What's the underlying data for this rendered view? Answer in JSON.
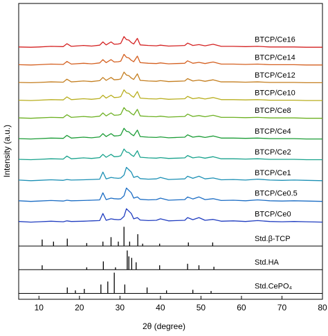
{
  "chart_data": {
    "type": "line",
    "x_label": "2θ (degree)",
    "y_label": "Intensity (a.u.)",
    "xlim": [
      5,
      80
    ],
    "ylim": [
      0,
      100
    ],
    "xticks": [
      10,
      20,
      30,
      40,
      50,
      60,
      70,
      80
    ],
    "x": [
      5,
      8,
      10,
      13,
      16,
      16.9,
      18,
      21,
      23,
      25,
      25.8,
      26.6,
      27.8,
      28.6,
      29.6,
      30.2,
      31,
      31.6,
      32.2,
      32.8,
      33.4,
      34.3,
      35,
      37,
      39,
      40,
      42,
      44,
      46,
      46.7,
      48,
      49.5,
      51,
      53,
      55,
      58,
      61,
      64,
      67,
      70,
      73,
      76,
      80
    ],
    "series": [
      {
        "name": "BTCP/Ce0",
        "color": "#1f3cc0",
        "values": [
          26.3,
          26.1,
          26.2,
          26.4,
          26.2,
          26.5,
          26.3,
          26.4,
          26.5,
          26.6,
          29,
          26.7,
          27.2,
          27,
          26.9,
          27,
          28,
          30.6,
          29.8,
          29,
          27.2,
          27.6,
          26.8,
          26.6,
          26.7,
          27.2,
          26.5,
          26.6,
          26.7,
          27.6,
          26.9,
          27.6,
          26.7,
          27,
          26.4,
          26.5,
          26.3,
          26.6,
          26.3,
          26.2,
          26.3,
          26.2,
          26.1
        ]
      },
      {
        "name": "BTCP/Ce0.5",
        "color": "#1a6cc4",
        "values": [
          33.3,
          33.1,
          33.2,
          33.4,
          33.2,
          33.5,
          33.3,
          33.4,
          33.5,
          33.6,
          36,
          33.7,
          34.2,
          34,
          33.9,
          34,
          35,
          37.6,
          36.8,
          36,
          34.2,
          34.6,
          33.8,
          33.6,
          33.7,
          34.2,
          33.5,
          33.6,
          33.7,
          34.6,
          33.9,
          34.6,
          33.7,
          34,
          33.4,
          33.5,
          33.3,
          33.6,
          33.3,
          33.2,
          33.3,
          33.2,
          33.1
        ]
      },
      {
        "name": "BTCP/Ce1",
        "color": "#1a8fb4",
        "values": [
          40.3,
          40.1,
          40.2,
          40.4,
          40.2,
          40.5,
          40.3,
          40.4,
          40.5,
          40.6,
          43,
          40.7,
          41.2,
          41,
          40.9,
          41,
          42,
          44.6,
          43.8,
          43,
          41.2,
          41.6,
          40.8,
          40.6,
          40.7,
          41.2,
          40.5,
          40.6,
          40.7,
          41.6,
          40.9,
          41.6,
          40.7,
          41,
          40.4,
          40.5,
          40.3,
          40.6,
          40.3,
          40.2,
          40.3,
          40.2,
          40.1
        ]
      },
      {
        "name": "BTCP/Ce2",
        "color": "#17a28c",
        "values": [
          47.3,
          47.2,
          47.3,
          47.5,
          47.4,
          48.4,
          47.5,
          47.8,
          47.6,
          47.9,
          49,
          48,
          49,
          48.2,
          48.3,
          48.5,
          50.8,
          49.8,
          49.6,
          48.8,
          48.3,
          50.2,
          48,
          47.8,
          47.7,
          47.9,
          47.6,
          47.7,
          47.8,
          48.6,
          47.8,
          48.1,
          47.7,
          48.2,
          47.5,
          47.5,
          47.4,
          47.5,
          47.3,
          47.3,
          47.3,
          47.2,
          47.2
        ]
      },
      {
        "name": "BTCP/Ce4",
        "color": "#1b9c36",
        "values": [
          54.3,
          54.2,
          54.3,
          54.5,
          54.4,
          55.4,
          54.5,
          54.8,
          54.6,
          54.9,
          56,
          55,
          56,
          55.2,
          55.3,
          55.5,
          57.8,
          56.8,
          56.6,
          55.8,
          55.3,
          57.2,
          55,
          54.8,
          54.7,
          54.9,
          54.6,
          54.7,
          54.8,
          55.6,
          54.8,
          55.1,
          54.7,
          55.2,
          54.5,
          54.5,
          54.4,
          54.5,
          54.3,
          54.3,
          54.3,
          54.2,
          54.2
        ]
      },
      {
        "name": "BTCP/Ce8",
        "color": "#6cb021",
        "values": [
          61.3,
          61.2,
          61.3,
          61.5,
          61.4,
          62.4,
          61.5,
          61.8,
          61.6,
          61.9,
          63,
          62,
          63,
          62.2,
          62.3,
          62.5,
          64.8,
          63.8,
          63.6,
          62.8,
          62.3,
          64.2,
          62,
          61.8,
          61.7,
          61.9,
          61.6,
          61.7,
          61.8,
          62.6,
          61.8,
          62.1,
          61.7,
          62.2,
          61.5,
          61.5,
          61.4,
          61.5,
          61.3,
          61.3,
          61.3,
          61.2,
          61.2
        ]
      },
      {
        "name": "BTCP/Ce10",
        "color": "#b8ae1e",
        "values": [
          67.3,
          67.2,
          67.3,
          67.5,
          67.4,
          68.4,
          67.5,
          67.8,
          67.6,
          67.9,
          69,
          68,
          69,
          68.2,
          68.3,
          68.5,
          70.8,
          69.8,
          69.6,
          68.8,
          68.3,
          70.2,
          68,
          67.8,
          67.7,
          67.9,
          67.6,
          67.7,
          67.8,
          68.6,
          67.8,
          68.1,
          67.7,
          68.2,
          67.5,
          67.5,
          67.4,
          67.5,
          67.3,
          67.3,
          67.3,
          67.2,
          67.2
        ]
      },
      {
        "name": "BTCP/Ce12",
        "color": "#c47e1f",
        "values": [
          73.3,
          73.2,
          73.3,
          73.5,
          73.4,
          74.4,
          73.5,
          73.8,
          73.6,
          73.9,
          75,
          74,
          75,
          74.2,
          74.3,
          74.5,
          76.8,
          75.8,
          75.6,
          74.8,
          74.3,
          76.2,
          74,
          73.8,
          73.7,
          73.9,
          73.6,
          73.7,
          73.8,
          74.6,
          73.8,
          74.1,
          73.7,
          74.2,
          73.5,
          73.5,
          73.4,
          73.5,
          73.3,
          73.3,
          73.3,
          73.2,
          73.2
        ]
      },
      {
        "name": "BTCP/Ce14",
        "color": "#d45f1f",
        "values": [
          79.3,
          79.2,
          79.3,
          79.5,
          79.4,
          80.4,
          79.5,
          79.8,
          79.6,
          79.9,
          81,
          80,
          81,
          80.2,
          80.3,
          80.5,
          82.8,
          81.8,
          81.6,
          80.8,
          80.3,
          82.2,
          80,
          79.8,
          79.7,
          79.9,
          79.6,
          79.7,
          79.8,
          80.6,
          79.8,
          80.1,
          79.7,
          80.2,
          79.5,
          79.5,
          79.4,
          79.5,
          79.3,
          79.3,
          79.3,
          79.2,
          79.2
        ]
      },
      {
        "name": "BTCP/Ce16",
        "color": "#d42020",
        "values": [
          85.3,
          85.2,
          85.3,
          85.5,
          85.4,
          86.4,
          85.5,
          85.8,
          85.6,
          85.9,
          87,
          86,
          87,
          86.2,
          86.3,
          86.5,
          88.8,
          87.8,
          87.6,
          86.8,
          86.3,
          88.2,
          86,
          85.8,
          85.7,
          85.9,
          85.6,
          85.7,
          85.8,
          86.6,
          85.8,
          86.1,
          85.7,
          86.2,
          85.5,
          85.5,
          85.4,
          85.5,
          85.3,
          85.3,
          85.3,
          85.2,
          85.2
        ]
      }
    ],
    "stick_series": [
      {
        "name": "Std.β-TCP",
        "color": "#000000",
        "baseline": 18,
        "x": [
          10.8,
          13.6,
          17,
          21.8,
          25.8,
          27.8,
          29.6,
          31,
          32.4,
          34.4,
          35.6,
          39.8,
          46.9,
          52.9
        ],
        "values": [
          20.2,
          19.5,
          20.5,
          19,
          19.5,
          21,
          19.5,
          24.5,
          19.5,
          22,
          18.8,
          18.8,
          19.2,
          19.2
        ]
      },
      {
        "name": "Std.HA",
        "color": "#000000",
        "baseline": 10,
        "x": [
          10.8,
          21.8,
          25.9,
          28.9,
          31.8,
          32.2,
          32.9,
          34,
          39.8,
          46.7,
          49.5,
          53.2
        ],
        "values": [
          11.5,
          10.8,
          12.8,
          10.8,
          16.5,
          14.5,
          14,
          12.5,
          11.5,
          12,
          11.5,
          11
        ]
      },
      {
        "name": "Std.CePO₄",
        "color": "#000000",
        "baseline": 2,
        "x": [
          17,
          19,
          21.2,
          25.3,
          27,
          28.6,
          31.2,
          36.7,
          41.5,
          48,
          52.5
        ],
        "values": [
          4,
          3,
          3.5,
          5,
          6,
          9,
          5,
          4,
          3,
          3.2,
          2.8
        ]
      }
    ]
  }
}
